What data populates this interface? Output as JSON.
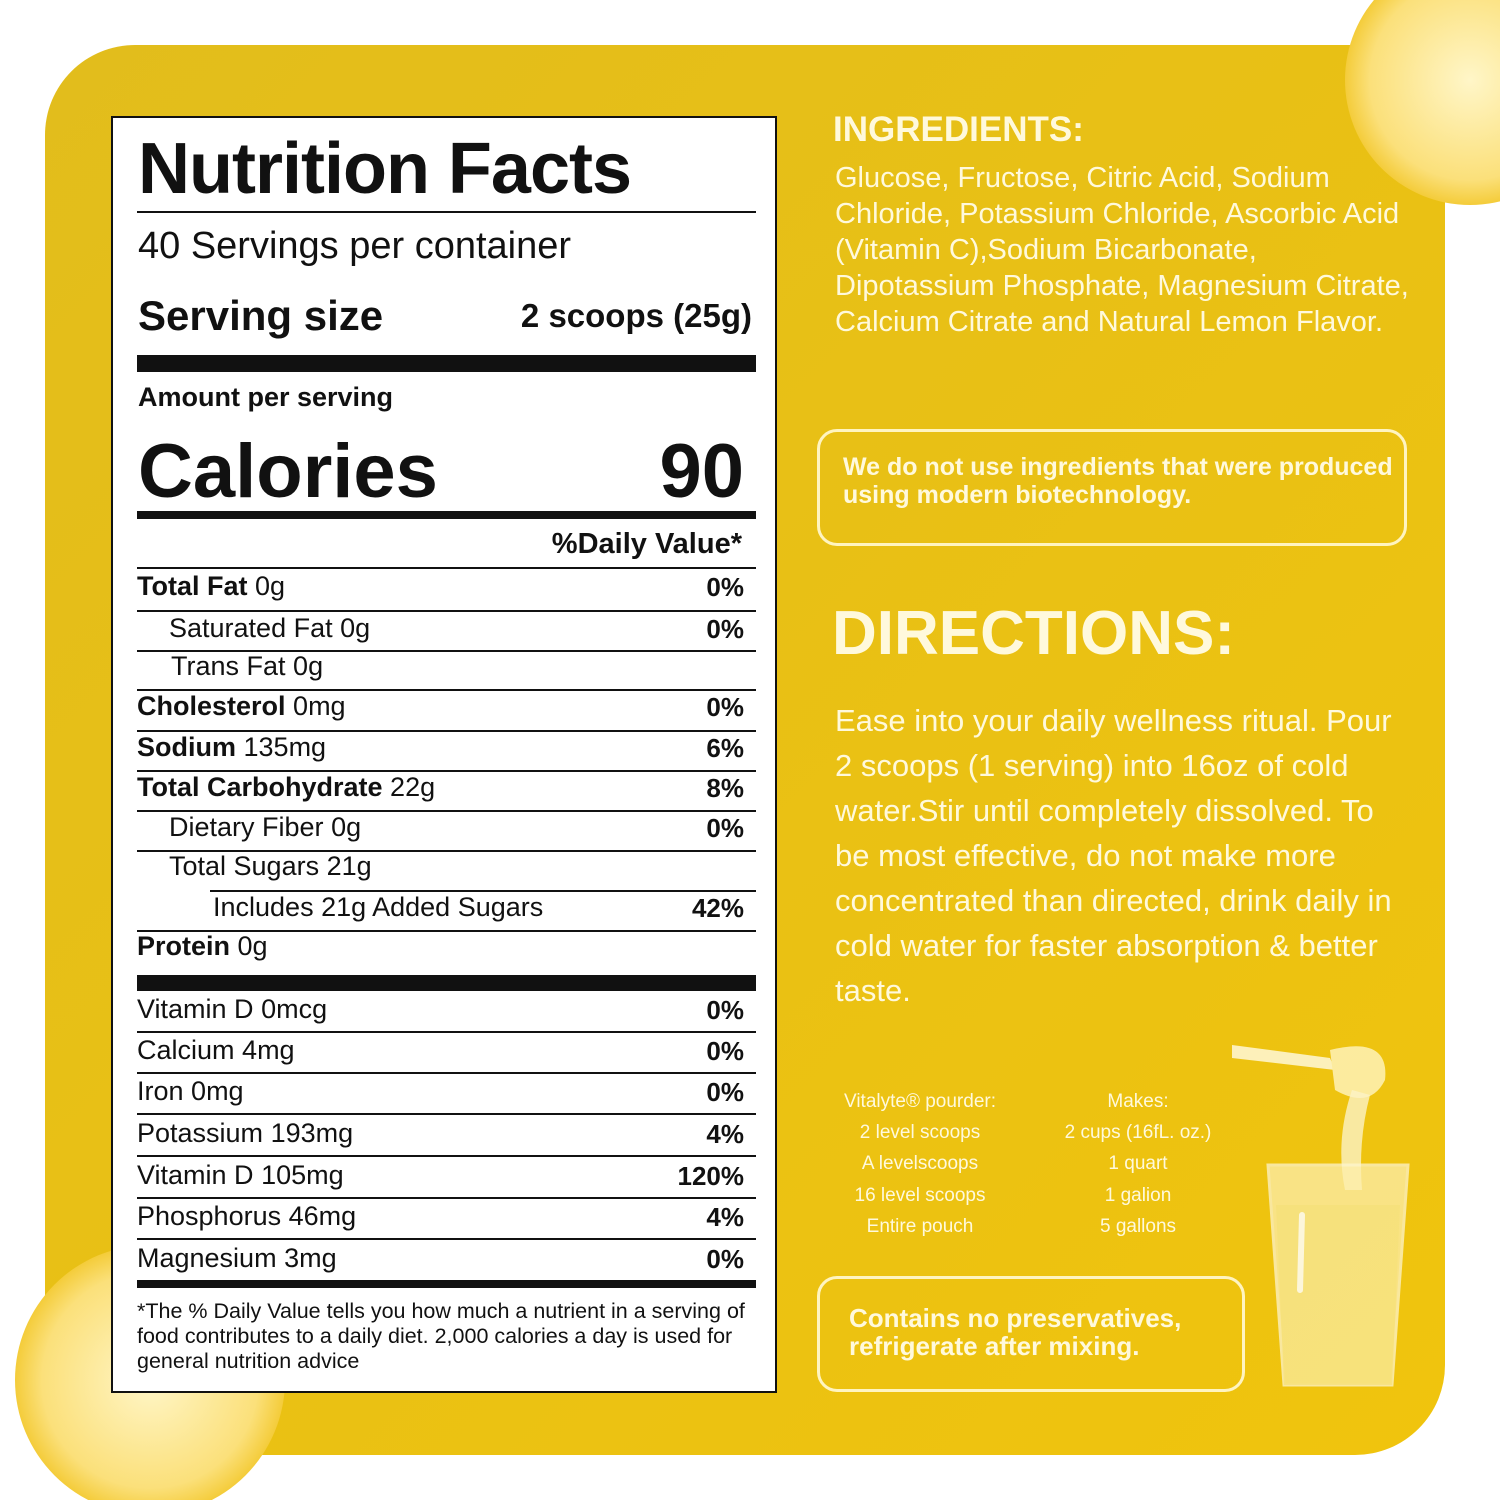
{
  "nutrition": {
    "title": "Nutrition Facts",
    "servings": "40 Servings per container",
    "serving_size_label": "Serving size",
    "serving_size_value": "2 scoops (25g)",
    "amount_per_serving": "Amount per serving",
    "calories_label": "Calories",
    "calories_value": "90",
    "daily_value_header": "%Daily Value*",
    "rows": [
      {
        "name": "Total Fat",
        "amount": "0g",
        "dv": "0%"
      },
      {
        "name": "Saturated Fat",
        "amount": "0g",
        "dv": "0%"
      },
      {
        "name": "Trans Fat",
        "amount": "0g"
      },
      {
        "name": "Cholesterol",
        "amount": "0mg",
        "dv": "0%"
      },
      {
        "name": "Sodium",
        "amount": "135mg",
        "dv": "6%"
      },
      {
        "name": "Total Carbohydrate",
        "amount": "22g",
        "dv": "8%"
      },
      {
        "name": "Dietary Fiber",
        "amount": "0g",
        "dv": "0%"
      },
      {
        "name": "Total Sugars",
        "amount": "21g"
      },
      {
        "name": "Includes 21g Added Sugars",
        "dv": "42%"
      },
      {
        "name": "Protein",
        "amount": "0g"
      }
    ],
    "micronutrients": [
      {
        "name": "Vitamin D",
        "amount": "0mcg",
        "dv": "0%"
      },
      {
        "name": "Calcium",
        "amount": "4mg",
        "dv": "0%"
      },
      {
        "name": "Iron",
        "amount": "0mg",
        "dv": "0%"
      },
      {
        "name": "Potassium",
        "amount": "193mg",
        "dv": "4%"
      },
      {
        "name": "Vitamin D",
        "amount": "105mg",
        "dv": "120%"
      },
      {
        "name": "Phosphorus",
        "amount": "46mg",
        "dv": "4%"
      },
      {
        "name": "Magnesium",
        "amount": "3mg",
        "dv": "0%"
      }
    ],
    "footnote": "*The % Daily Value tells you how much a nutrient in a serving of food contributes to a daily diet. 2,000 calories a day is used for general nutrition advice"
  },
  "ingredients": {
    "title": "INGREDIENTS:",
    "text": "Glucose, Fructose, Citric Acid, Sodium Chloride, Potassium Chloride, Ascorbic Acid (Vitamin C),Sodium Bicarbonate, Dipotassium Phosphate, Magnesium Citrate, Calcium Citrate and Natural Lemon Flavor."
  },
  "biotech_note": "We do not use ingredients that were produced using modern biotechnology.",
  "directions": {
    "title": "DIRECTIONS:",
    "text": "Ease into your daily wellness ritual. Pour 2 scoops (1 serving) into 16oz of cold water.Stir until completely dissolved. To be most effective, do not make more concentrated than directed, drink daily in cold water for faster absorption & better taste."
  },
  "mixing": {
    "headers": [
      "Vitalyte® pourder:",
      "Makes:"
    ],
    "rows": [
      [
        "2 level scoops",
        "2 cups (16fL. oz.)"
      ],
      [
        "A levelscoops",
        "1 quart"
      ],
      [
        "16 level scoops",
        "1 galion"
      ],
      [
        "Entire pouch",
        "5 gallons"
      ]
    ]
  },
  "preservatives_note": "Contains no preservatives, refrigerate after mixing."
}
